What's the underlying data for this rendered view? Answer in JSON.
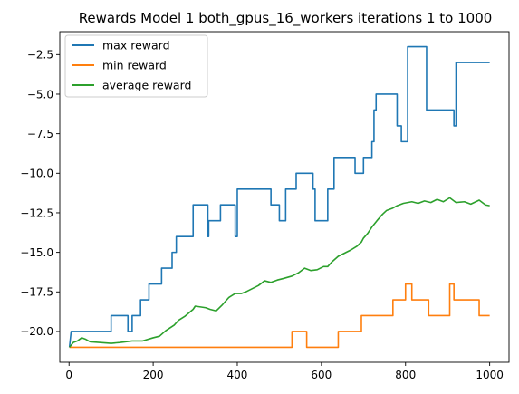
{
  "chart_data": {
    "type": "line",
    "title": "Rewards Model 1 both_gpus_16_workers iterations 1 to 1000",
    "xlabel": "",
    "ylabel": "",
    "xlim": [
      -22,
      1046
    ],
    "ylim": [
      -21.95,
      -1.05
    ],
    "xticks": [
      0,
      200,
      400,
      600,
      800,
      1000
    ],
    "xtick_labels": [
      "0",
      "200",
      "400",
      "600",
      "800",
      "1000"
    ],
    "yticks": [
      -20.0,
      -17.5,
      -15.0,
      -12.5,
      -10.0,
      -7.5,
      -5.0,
      -2.5
    ],
    "ytick_labels": [
      "−20.0",
      "−17.5",
      "−15.0",
      "−12.5",
      "−10.0",
      "−7.5",
      "−5.0",
      "−2.5"
    ],
    "grid": false,
    "legend_position": "top-left",
    "series": [
      {
        "name": "max reward",
        "color": "#1f77b4",
        "step": true,
        "points": [
          [
            1,
            -21
          ],
          [
            5,
            -20
          ],
          [
            100,
            -20
          ],
          [
            100,
            -19
          ],
          [
            140,
            -19
          ],
          [
            140,
            -20
          ],
          [
            150,
            -20
          ],
          [
            150,
            -19
          ],
          [
            170,
            -19
          ],
          [
            170,
            -18
          ],
          [
            190,
            -18
          ],
          [
            190,
            -17
          ],
          [
            220,
            -17
          ],
          [
            220,
            -16
          ],
          [
            245,
            -16
          ],
          [
            245,
            -15
          ],
          [
            255,
            -15
          ],
          [
            255,
            -14
          ],
          [
            295,
            -14
          ],
          [
            295,
            -12
          ],
          [
            330,
            -12
          ],
          [
            330,
            -14
          ],
          [
            332,
            -14
          ],
          [
            332,
            -13
          ],
          [
            360,
            -13
          ],
          [
            360,
            -12
          ],
          [
            395,
            -12
          ],
          [
            395,
            -14
          ],
          [
            400,
            -14
          ],
          [
            400,
            -11
          ],
          [
            480,
            -11
          ],
          [
            480,
            -12
          ],
          [
            500,
            -12
          ],
          [
            500,
            -13
          ],
          [
            515,
            -13
          ],
          [
            515,
            -11
          ],
          [
            540,
            -11
          ],
          [
            540,
            -10
          ],
          [
            580,
            -10
          ],
          [
            580,
            -11
          ],
          [
            585,
            -11
          ],
          [
            585,
            -13
          ],
          [
            615,
            -13
          ],
          [
            615,
            -11
          ],
          [
            630,
            -11
          ],
          [
            630,
            -9
          ],
          [
            680,
            -9
          ],
          [
            680,
            -10
          ],
          [
            700,
            -10
          ],
          [
            700,
            -9
          ],
          [
            720,
            -9
          ],
          [
            720,
            -8
          ],
          [
            725,
            -8
          ],
          [
            725,
            -6
          ],
          [
            730,
            -6
          ],
          [
            730,
            -5
          ],
          [
            780,
            -5
          ],
          [
            780,
            -7
          ],
          [
            790,
            -7
          ],
          [
            790,
            -8
          ],
          [
            805,
            -8
          ],
          [
            805,
            -2
          ],
          [
            850,
            -2
          ],
          [
            850,
            -6
          ],
          [
            915,
            -6
          ],
          [
            915,
            -7
          ],
          [
            920,
            -7
          ],
          [
            920,
            -3
          ],
          [
            1000,
            -3
          ]
        ]
      },
      {
        "name": "min reward",
        "color": "#ff7f0e",
        "step": true,
        "points": [
          [
            1,
            -21
          ],
          [
            530,
            -21
          ],
          [
            530,
            -20
          ],
          [
            565,
            -20
          ],
          [
            565,
            -21
          ],
          [
            640,
            -21
          ],
          [
            640,
            -20
          ],
          [
            695,
            -20
          ],
          [
            695,
            -19
          ],
          [
            770,
            -19
          ],
          [
            770,
            -18
          ],
          [
            800,
            -18
          ],
          [
            800,
            -17
          ],
          [
            815,
            -17
          ],
          [
            815,
            -18
          ],
          [
            855,
            -18
          ],
          [
            855,
            -19
          ],
          [
            905,
            -19
          ],
          [
            905,
            -17
          ],
          [
            915,
            -17
          ],
          [
            915,
            -18
          ],
          [
            975,
            -18
          ],
          [
            975,
            -19
          ],
          [
            1000,
            -19
          ]
        ]
      },
      {
        "name": "average reward",
        "color": "#2ca02c",
        "step": false,
        "points": [
          [
            1,
            -21
          ],
          [
            10,
            -20.7
          ],
          [
            20,
            -20.6
          ],
          [
            30,
            -20.4
          ],
          [
            40,
            -20.5
          ],
          [
            50,
            -20.65
          ],
          [
            75,
            -20.7
          ],
          [
            100,
            -20.75
          ],
          [
            120,
            -20.7
          ],
          [
            150,
            -20.6
          ],
          [
            175,
            -20.6
          ],
          [
            200,
            -20.4
          ],
          [
            215,
            -20.3
          ],
          [
            230,
            -19.95
          ],
          [
            250,
            -19.6
          ],
          [
            260,
            -19.3
          ],
          [
            275,
            -19.05
          ],
          [
            295,
            -18.6
          ],
          [
            300,
            -18.4
          ],
          [
            325,
            -18.5
          ],
          [
            335,
            -18.6
          ],
          [
            350,
            -18.7
          ],
          [
            365,
            -18.3
          ],
          [
            380,
            -17.85
          ],
          [
            395,
            -17.6
          ],
          [
            410,
            -17.6
          ],
          [
            420,
            -17.5
          ],
          [
            435,
            -17.3
          ],
          [
            450,
            -17.1
          ],
          [
            465,
            -16.8
          ],
          [
            480,
            -16.9
          ],
          [
            495,
            -16.75
          ],
          [
            510,
            -16.65
          ],
          [
            530,
            -16.5
          ],
          [
            545,
            -16.3
          ],
          [
            560,
            -16.0
          ],
          [
            575,
            -16.15
          ],
          [
            590,
            -16.1
          ],
          [
            605,
            -15.9
          ],
          [
            615,
            -15.9
          ],
          [
            625,
            -15.6
          ],
          [
            640,
            -15.25
          ],
          [
            655,
            -15.05
          ],
          [
            670,
            -14.85
          ],
          [
            685,
            -14.6
          ],
          [
            695,
            -14.35
          ],
          [
            700,
            -14.1
          ],
          [
            710,
            -13.8
          ],
          [
            720,
            -13.4
          ],
          [
            732,
            -13.0
          ],
          [
            745,
            -12.6
          ],
          [
            755,
            -12.35
          ],
          [
            770,
            -12.2
          ],
          [
            780,
            -12.05
          ],
          [
            795,
            -11.9
          ],
          [
            815,
            -11.8
          ],
          [
            830,
            -11.9
          ],
          [
            845,
            -11.75
          ],
          [
            860,
            -11.85
          ],
          [
            875,
            -11.65
          ],
          [
            890,
            -11.8
          ],
          [
            905,
            -11.55
          ],
          [
            920,
            -11.85
          ],
          [
            940,
            -11.8
          ],
          [
            955,
            -11.95
          ],
          [
            975,
            -11.7
          ],
          [
            990,
            -12.0
          ],
          [
            1000,
            -12.05
          ]
        ]
      }
    ]
  }
}
